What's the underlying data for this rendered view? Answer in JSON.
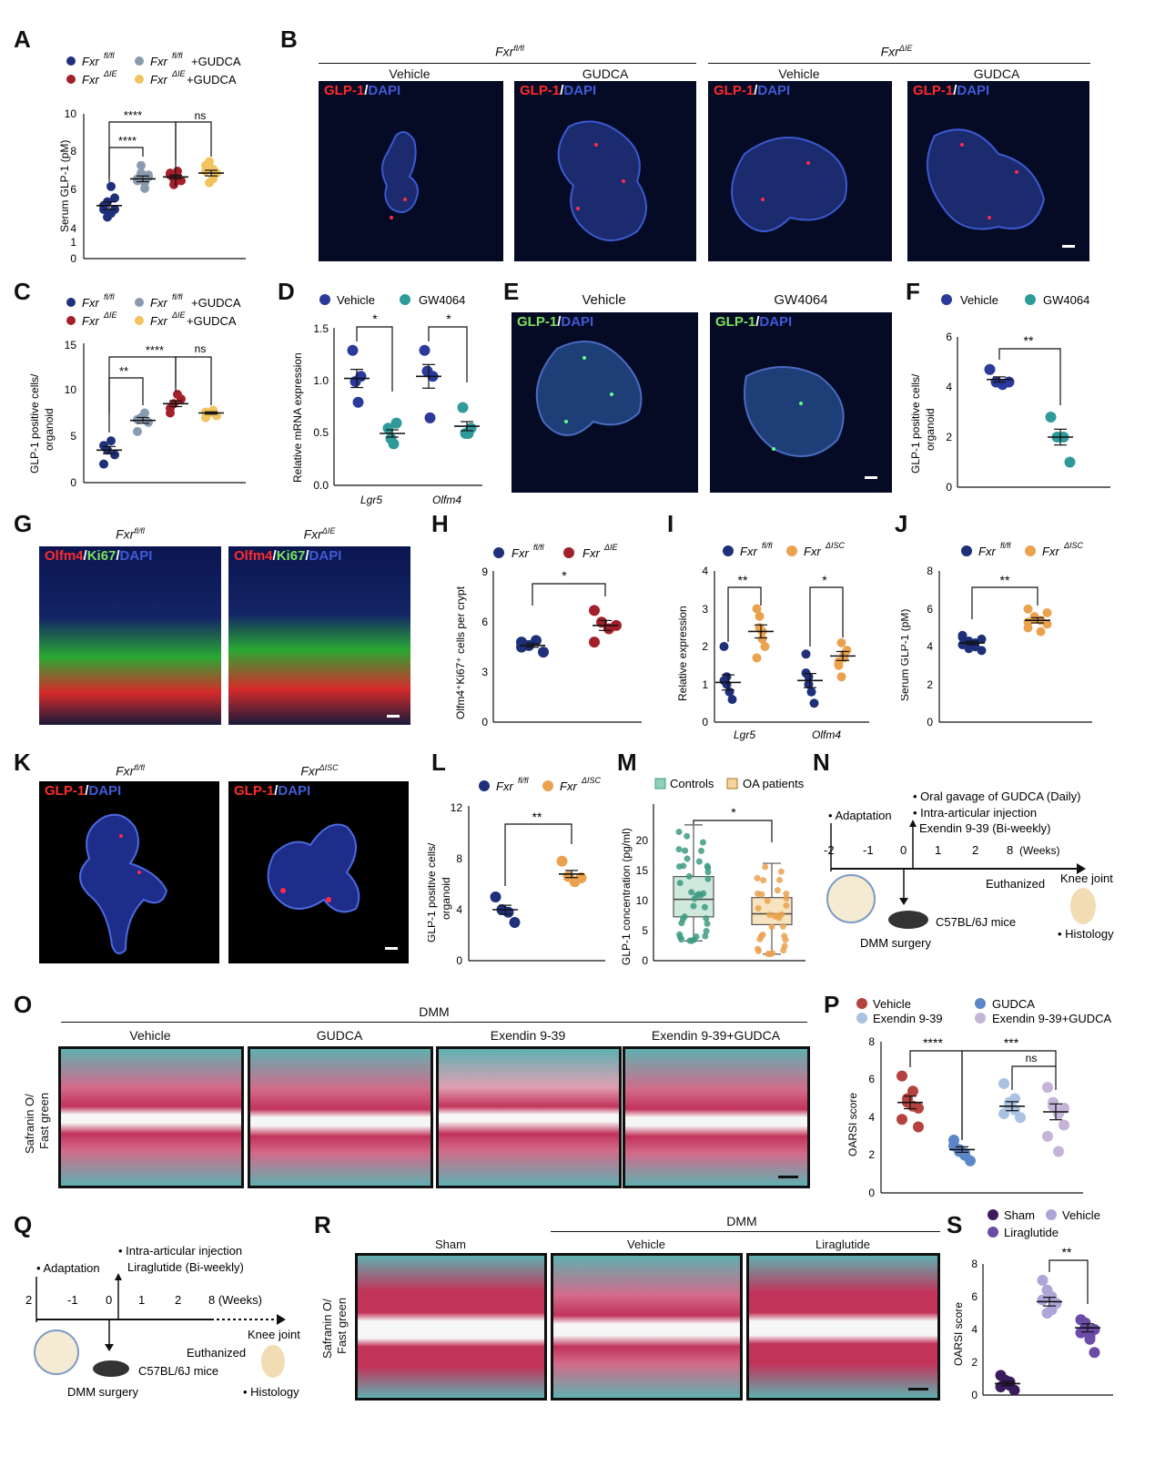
{
  "panels": {
    "A": {
      "label": "A",
      "legend": [
        "Fxr",
        "fl/fl",
        "Fxr",
        "ΔIE",
        "Fxr",
        "fl/fl",
        "+GUDCA",
        "Fxr",
        "ΔIE",
        "+GUDCA"
      ],
      "ylabel": "Serum GLP-1 (pM)",
      "ticks": [
        "0",
        "1",
        "4",
        "6",
        "8",
        "10"
      ],
      "sig": [
        "****",
        "****",
        "ns"
      ]
    },
    "B": {
      "label": "B",
      "g1": "Fxr",
      "g1sup": "fl/fl",
      "g2": "Fxr",
      "g2sup": "ΔIE",
      "c1": "Vehicle",
      "c2": "GUDCA",
      "c3": "Vehicle",
      "c4": "GUDCA",
      "stain1": "GLP-1",
      "sep": "/",
      "stain2": "DAPI"
    },
    "C": {
      "label": "C",
      "ylabel1": "GLP-1 positive cells/",
      "ylabel2": "organoid",
      "ticks": [
        "0",
        "5",
        "10",
        "15"
      ],
      "sig": [
        "**",
        "****",
        "ns"
      ]
    },
    "D": {
      "label": "D",
      "leg1": "Vehicle",
      "leg2": "GW4064",
      "ylabel": "Relative mRNA expression",
      "ticks": [
        "0.0",
        "0.5",
        "1.0",
        "1.5"
      ],
      "x1": "Lgr5",
      "x2": "Olfm4",
      "sig": [
        "*",
        "*"
      ]
    },
    "E": {
      "label": "E",
      "c1": "Vehicle",
      "c2": "GW4064",
      "stain1": "GLP-1",
      "sep": "/",
      "stain2": "DAPI"
    },
    "F": {
      "label": "F",
      "leg1": "Vehicle",
      "leg2": "GW4064",
      "ylabel1": "GLP-1 positive cells/",
      "ylabel2": "organoid",
      "ticks": [
        "0",
        "2",
        "4",
        "6"
      ],
      "sig": "**"
    },
    "G": {
      "label": "G",
      "c1": "Fxr",
      "c1sup": "fl/fl",
      "c2": "Fxr",
      "c2sup": "ΔIE",
      "s1": "Olfm4",
      "s2": "Ki67",
      "s3": "DAPI",
      "sep": "/"
    },
    "H": {
      "label": "H",
      "leg1": "Fxr",
      "leg1sup": "fl/fl",
      "leg2": "Fxr",
      "leg2sup": "ΔIE",
      "ylabel": "Olfm4⁺Ki67⁺ cells per crypt",
      "ticks": [
        "0",
        "3",
        "6",
        "9"
      ],
      "sig": "*"
    },
    "I": {
      "label": "I",
      "leg1": "Fxr",
      "leg1sup": "fl/fl",
      "leg2": "Fxr",
      "leg2sup": "ΔISC",
      "ylabel": "Relative expression",
      "ticks": [
        "0",
        "1",
        "2",
        "3",
        "4"
      ],
      "x1": "Lgr5",
      "x2": "Olfm4",
      "sig": [
        "**",
        "*"
      ]
    },
    "J": {
      "label": "J",
      "leg1": "Fxr",
      "leg1sup": "fl/fl",
      "leg2": "Fxr",
      "leg2sup": "ΔISC",
      "ylabel": "Serum GLP-1 (pM)",
      "ticks": [
        "0",
        "2",
        "4",
        "6",
        "8"
      ],
      "sig": "**"
    },
    "K": {
      "label": "K",
      "c1": "Fxr",
      "c1sup": "fl/fl",
      "c2": "Fxr",
      "c2sup": "ΔISC",
      "stain1": "GLP-1",
      "sep": "/",
      "stain2": "DAPI"
    },
    "L": {
      "label": "L",
      "leg1": "Fxr",
      "leg1sup": "fl/fl",
      "leg2": "Fxr",
      "leg2sup": "ΔISC",
      "ylabel1": "GLP-1 positive cells/",
      "ylabel2": "organoid",
      "ticks": [
        "0",
        "4",
        "8",
        "12"
      ],
      "sig": "**"
    },
    "M": {
      "label": "M",
      "leg1": "Controls",
      "leg2": "OA patients",
      "ylabel": "GLP-1 concentration (pg/ml)",
      "ticks": [
        "0",
        "5",
        "10",
        "15",
        "20"
      ],
      "sig": "*"
    },
    "N": {
      "label": "N",
      "t1": "• Oral gavage of GUDCA (Daily)",
      "t2": "• Intra-articular injection",
      "t3": "Exendin 9-39 (Bi-weekly)",
      "adapt": "• Adaptation",
      "ticks": [
        "-2",
        "-1",
        "0",
        "1",
        "2",
        "8"
      ],
      "weeks": "(Weeks)",
      "euth": "Euthanized",
      "knee": "Knee joint",
      "mice": "C57BL/6J mice",
      "surgery": "DMM surgery",
      "histo": "• Histology"
    },
    "O": {
      "label": "O",
      "dmm": "DMM",
      "c1": "Vehicle",
      "c2": "GUDCA",
      "c3": "Exendin 9-39",
      "c4": "Exendin 9-39+GUDCA",
      "ylab1": "Safranin O/",
      "ylab2": "Fast green"
    },
    "P": {
      "label": "P",
      "leg": [
        "Vehicle",
        "GUDCA",
        "Exendin 9-39",
        "Exendin 9-39+GUDCA"
      ],
      "ylabel": "OARSI score",
      "ticks": [
        "0",
        "2",
        "4",
        "6",
        "8"
      ],
      "sig": [
        "****",
        "***",
        "ns"
      ]
    },
    "Q": {
      "label": "Q",
      "adapt": "• Adaptation",
      "t1": "• Intra-articular injection",
      "t2": "Liraglutide (Bi-weekly)",
      "ticks": [
        "2",
        "-1",
        "0",
        "1",
        "2",
        "8 (Weeks)"
      ],
      "euth": "Euthanized",
      "knee": "Knee joint",
      "mice": "C57BL/6J mice",
      "surgery": "DMM surgery",
      "histo": "• Histology"
    },
    "R": {
      "label": "R",
      "dmm": "DMM",
      "c1": "Sham",
      "c2": "Vehicle",
      "c3": "Liraglutide",
      "ylab1": "Safranin O/",
      "ylab2": "Fast green"
    },
    "S": {
      "label": "S",
      "leg": [
        "Sham",
        "Vehicle",
        "Liraglutide"
      ],
      "ylabel": "OARSI score",
      "ticks": [
        "0",
        "2",
        "4",
        "6",
        "8"
      ],
      "sig": "**"
    }
  },
  "chart_data": [
    {
      "panel": "A",
      "type": "scatter",
      "categories": [
        "Fxr fl/fl",
        "Fxr ΔIE",
        "Fxr fl/fl+GUDCA",
        "Fxr ΔIE+GUDCA"
      ],
      "order": [
        "Fxr fl/fl",
        "Fxr fl/fl+GUDCA",
        "Fxr ΔIE",
        "Fxr ΔIE+GUDCA"
      ],
      "values": [
        [
          5.0,
          5.4,
          4.8,
          5.6,
          5.2,
          4.6,
          6.2,
          5.0
        ],
        [
          6.5,
          6.9,
          6.4,
          6.8,
          6.6,
          7.3,
          6.1,
          6.7
        ],
        [
          6.8,
          6.6,
          7.0,
          6.5,
          6.9,
          6.3,
          6.7
        ],
        [
          7.0,
          7.5,
          6.6,
          6.9,
          7.3,
          6.4,
          7.1
        ]
      ],
      "means": [
        5.2,
        6.6,
        6.7,
        6.9
      ],
      "ylabel": "Serum GLP-1 (pM)",
      "ylim": [
        0,
        10
      ],
      "colors": [
        "#1f2f7a",
        "#8a9bb0",
        "#a3202a",
        "#f2c35e"
      ]
    },
    {
      "panel": "C",
      "type": "scatter",
      "order": [
        "Fxr fl/fl",
        "Fxr fl/fl+GUDCA",
        "Fxr ΔIE",
        "Fxr ΔIE+GUDCA"
      ],
      "values": [
        [
          2.0,
          3.5,
          4.5,
          3.0,
          4.0
        ],
        [
          5.5,
          7.0,
          7.5,
          6.5,
          6.8
        ],
        [
          7.5,
          8.5,
          9.5,
          9.0,
          8.0
        ],
        [
          7.0,
          7.5,
          7.8,
          7.2,
          7.6
        ]
      ],
      "means": [
        3.5,
        6.7,
        8.5,
        7.5
      ],
      "ylim": [
        0,
        15
      ],
      "colors": [
        "#1f2f7a",
        "#8a9bb0",
        "#a3202a",
        "#f2c35e"
      ]
    },
    {
      "panel": "D",
      "type": "scatter",
      "categories": [
        "Lgr5",
        "Olfm4"
      ],
      "series": [
        {
          "name": "Vehicle",
          "values": [
            [
              1.3,
              1.0,
              0.8,
              1.05
            ],
            [
              1.3,
              1.1,
              0.65,
              1.05
            ]
          ],
          "means": [
            1.03,
            1.05
          ]
        },
        {
          "name": "GW4064",
          "values": [
            [
              0.55,
              0.45,
              0.4,
              0.6
            ],
            [
              0.75,
              0.5,
              0.5,
              0.55
            ]
          ],
          "means": [
            0.5,
            0.57
          ]
        }
      ],
      "ylim": [
        0,
        1.5
      ],
      "colors": [
        "#2b3a9a",
        "#2e9a9a"
      ]
    },
    {
      "panel": "F",
      "type": "scatter",
      "categories": [
        "Vehicle",
        "GW4064"
      ],
      "values": [
        [
          4.7,
          4.2,
          4.1,
          4.2
        ],
        [
          2.8,
          2.0,
          2.0,
          1.0
        ]
      ],
      "means": [
        4.3,
        2.0
      ],
      "ylim": [
        0,
        6
      ],
      "colors": [
        "#2b3a9a",
        "#2e9a9a"
      ]
    },
    {
      "panel": "H",
      "type": "scatter",
      "categories": [
        "Fxr fl/fl",
        "Fxr ΔIE"
      ],
      "values": [
        [
          4.8,
          4.6,
          4.9,
          4.2,
          4.5
        ],
        [
          6.7,
          6.0,
          5.6,
          5.8,
          4.8
        ]
      ],
      "means": [
        4.6,
        5.8
      ],
      "ylim": [
        0,
        9
      ],
      "colors": [
        "#1f2f7a",
        "#a3202a"
      ]
    },
    {
      "panel": "I",
      "type": "scatter",
      "categories": [
        "Lgr5",
        "Olfm4"
      ],
      "series": [
        {
          "name": "Fxr fl/fl",
          "values": [
            [
              2.0,
              1.0,
              0.8,
              0.6,
              1.1,
              1.2
            ],
            [
              1.3,
              1.0,
              0.8,
              0.5,
              1.8,
              1.2
            ]
          ],
          "means": [
            1.05,
            1.1
          ]
        },
        {
          "name": "Fxr ΔISC",
          "values": [
            [
              3.0,
              2.8,
              2.4,
              2.0,
              1.7,
              2.5,
              2.2
            ],
            [
              1.6,
              2.1,
              1.7,
              1.9,
              1.5,
              1.2,
              1.8
            ]
          ],
          "means": [
            2.4,
            1.75
          ]
        }
      ],
      "ylim": [
        0,
        4
      ],
      "colors": [
        "#1f2f7a",
        "#eaa24f"
      ]
    },
    {
      "panel": "J",
      "type": "scatter",
      "categories": [
        "Fxr fl/fl",
        "Fxr ΔISC"
      ],
      "values": [
        [
          4.5,
          4.3,
          4.0,
          3.8,
          4.6,
          3.9,
          4.2,
          4.4,
          4.1
        ],
        [
          6.0,
          5.6,
          5.4,
          5.2,
          5.0,
          5.5,
          4.8,
          5.8,
          5.3
        ]
      ],
      "means": [
        4.2,
        5.4
      ],
      "ylim": [
        0,
        8
      ],
      "colors": [
        "#1f2f7a",
        "#eaa24f"
      ]
    },
    {
      "panel": "L",
      "type": "scatter",
      "categories": [
        "Fxr fl/fl",
        "Fxr ΔISC"
      ],
      "values": [
        [
          5.0,
          4.0,
          3.8,
          3.0
        ],
        [
          7.8,
          6.6,
          6.2,
          6.5
        ]
      ],
      "means": [
        4.0,
        6.8
      ],
      "ylim": [
        0,
        12
      ],
      "colors": [
        "#1f2f7a",
        "#eaa24f"
      ]
    },
    {
      "panel": "M",
      "type": "box",
      "categories": [
        "Controls",
        "OA patients"
      ],
      "boxes": [
        {
          "min": 3.3,
          "q1": 7.3,
          "median": 10.2,
          "q3": 14.0,
          "max": 22.6
        },
        {
          "min": 1.1,
          "q1": 6.0,
          "median": 7.8,
          "q3": 10.5,
          "max": 16.2
        }
      ],
      "ylim": [
        0,
        23
      ],
      "colors": [
        "#3d9b82",
        "#eaa24f"
      ]
    },
    {
      "panel": "P",
      "type": "scatter",
      "order": [
        "Vehicle",
        "GUDCA",
        "Exendin 9-39",
        "Exendin 9-39+GUDCA"
      ],
      "values": [
        [
          6.2,
          5.0,
          4.6,
          3.5,
          3.9,
          4.8,
          5.4,
          4.5
        ],
        [
          2.8,
          2.3,
          2.0,
          1.7,
          2.5,
          2.2,
          2.1
        ],
        [
          5.8,
          4.6,
          4.4,
          4.0,
          4.2,
          4.8,
          5.0
        ],
        [
          5.6,
          4.8,
          4.2,
          3.6,
          3.0,
          4.6,
          2.2,
          4.5
        ]
      ],
      "means": [
        4.8,
        2.3,
        4.6,
        4.3
      ],
      "ylim": [
        0,
        8
      ],
      "colors": [
        "#b4423f",
        "#5b86c8",
        "#aac2e2",
        "#c3b4d8"
      ]
    },
    {
      "panel": "S",
      "type": "scatter",
      "categories": [
        "Sham",
        "Vehicle",
        "Liraglutide"
      ],
      "values": [
        [
          1.2,
          0.9,
          0.6,
          0.3,
          0.5,
          0.7,
          0.8
        ],
        [
          7.0,
          6.4,
          5.2,
          5.6,
          5.8,
          5.0,
          6.0
        ],
        [
          4.6,
          4.2,
          3.6,
          4.0,
          3.8,
          4.4,
          3.4,
          2.6
        ]
      ],
      "means": [
        0.7,
        5.7,
        4.1
      ],
      "ylim": [
        0,
        8
      ],
      "colors": [
        "#3a1b5c",
        "#aca6d8",
        "#6a4ba6"
      ]
    }
  ]
}
